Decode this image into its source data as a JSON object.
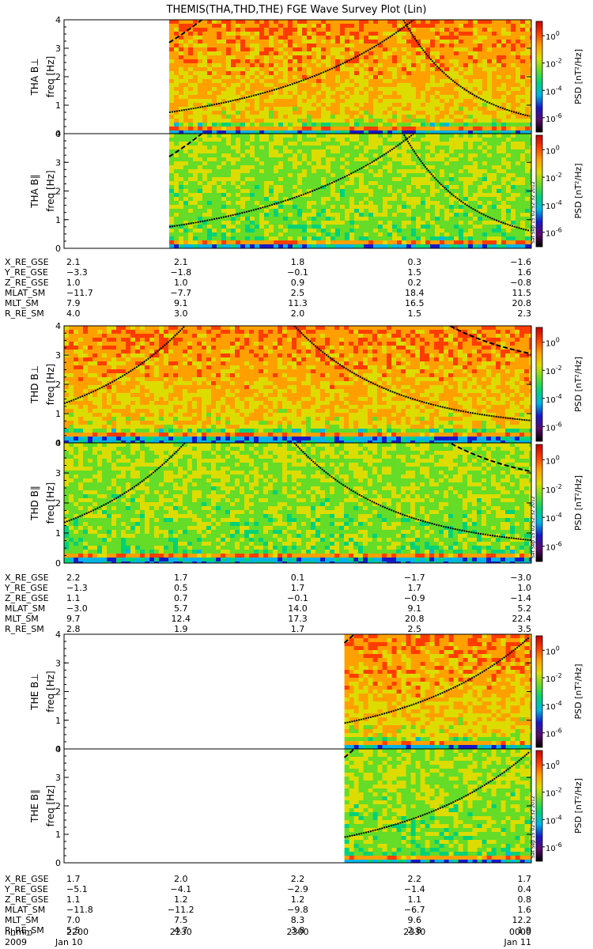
{
  "chart_data": {
    "type": "heatmap",
    "title": "THEMIS(THA,THD,THE) FGE Wave Survey Plot (Lin)",
    "ylabel": "freq [Hz]",
    "ylim": [
      0,
      4
    ],
    "yticks": [
      "0",
      "1",
      "2",
      "3",
      "4"
    ],
    "colorbar": {
      "label": "PSD [nT²/Hz]",
      "ticks": [
        {
          "base": "10",
          "exp": "0",
          "value": 1
        },
        {
          "base": "10",
          "exp": "-2",
          "value": 0.01
        },
        {
          "base": "10",
          "exp": "-4",
          "value": 0.0001
        },
        {
          "base": "10",
          "exp": "-6",
          "value": 1e-06
        }
      ],
      "colors": [
        "#000000",
        "#5a0a6e",
        "#1818c8",
        "#00b4e6",
        "#00d278",
        "#64dc28",
        "#dcdc00",
        "#ffa000",
        "#ff3c00",
        "#c80000"
      ]
    },
    "stamp": "Sat Sep 15 02:52:32 2012",
    "x_time": {
      "ticks": [
        "2200",
        "2230",
        "2300",
        "2330",
        "0000"
      ],
      "row_label": "hhmm",
      "year": "2009",
      "date_start": "Jan 10",
      "date_end": "Jan 11"
    },
    "panels": [
      {
        "label": "THA B⊥",
        "probe": "THA",
        "component": "perp",
        "data_start_frac": 0.225,
        "data_end_frac": 1.0
      },
      {
        "label": "THA B∥",
        "probe": "THA",
        "component": "par",
        "data_start_frac": 0.225,
        "data_end_frac": 1.0
      },
      {
        "label": "THD B⊥",
        "probe": "THD",
        "component": "perp",
        "data_start_frac": 0.0,
        "data_end_frac": 1.0
      },
      {
        "label": "THD B∥",
        "probe": "THD",
        "component": "par",
        "data_start_frac": 0.0,
        "data_end_frac": 1.0
      },
      {
        "label": "THE B⊥",
        "probe": "THE",
        "component": "perp",
        "data_start_frac": 0.6,
        "data_end_frac": 1.0
      },
      {
        "label": "THE B∥",
        "probe": "THE",
        "component": "par",
        "data_start_frac": 0.6,
        "data_end_frac": 1.0
      }
    ],
    "ephemeris": [
      {
        "probe": "THA",
        "rows": [
          {
            "name": "X_RE_GSE",
            "values": [
              "2.1",
              "2.1",
              "1.8",
              "0.3",
              "−1.6"
            ]
          },
          {
            "name": "Y_RE_GSE",
            "values": [
              "−3.3",
              "−1.8",
              "−0.1",
              "1.5",
              "1.6"
            ]
          },
          {
            "name": "Z_RE_GSE",
            "values": [
              "1.0",
              "1.0",
              "0.9",
              "0.2",
              "−0.8"
            ]
          },
          {
            "name": "MLAT_SM",
            "values": [
              "−11.7",
              "−7.7",
              "2.5",
              "18.4",
              "11.5"
            ]
          },
          {
            "name": "MLT_SM",
            "values": [
              "7.9",
              "9.1",
              "11.3",
              "16.5",
              "20.8"
            ]
          },
          {
            "name": "R_RE_SM",
            "values": [
              "4.0",
              "3.0",
              "2.0",
              "1.5",
              "2.3"
            ]
          }
        ]
      },
      {
        "probe": "THD",
        "rows": [
          {
            "name": "X_RE_GSE",
            "values": [
              "2.2",
              "1.7",
              "0.1",
              "−1.7",
              "−3.0"
            ]
          },
          {
            "name": "Y_RE_GSE",
            "values": [
              "−1.3",
              "0.5",
              "1.7",
              "1.7",
              "1.0"
            ]
          },
          {
            "name": "Z_RE_GSE",
            "values": [
              "1.1",
              "0.7",
              "−0.1",
              "−0.9",
              "−1.4"
            ]
          },
          {
            "name": "MLAT_SM",
            "values": [
              "−3.0",
              "5.7",
              "14.0",
              "9.1",
              "5.2"
            ]
          },
          {
            "name": "MLT_SM",
            "values": [
              "9.7",
              "12.4",
              "17.3",
              "20.8",
              "22.4"
            ]
          },
          {
            "name": "R_RE_SM",
            "values": [
              "2.8",
              "1.9",
              "1.7",
              "2.5",
              "3.5"
            ]
          }
        ]
      },
      {
        "probe": "THE",
        "rows": [
          {
            "name": "X_RE_GSE",
            "values": [
              "1.7",
              "2.0",
              "2.2",
              "2.2",
              "1.7"
            ]
          },
          {
            "name": "Y_RE_GSE",
            "values": [
              "−5.1",
              "−4.1",
              "−2.9",
              "−1.4",
              "0.4"
            ]
          },
          {
            "name": "Z_RE_GSE",
            "values": [
              "1.1",
              "1.2",
              "1.2",
              "1.1",
              "0.8"
            ]
          },
          {
            "name": "MLAT_SM",
            "values": [
              "−11.8",
              "−11.2",
              "−9.8",
              "−6.7",
              "1.6"
            ]
          },
          {
            "name": "MLT_SM",
            "values": [
              "7.0",
              "7.5",
              "8.3",
              "9.6",
              "12.2"
            ]
          },
          {
            "name": "R_RE_SM",
            "values": [
              "5.5",
              "4.7",
              "3.8",
              "2.8",
              "1.9"
            ]
          }
        ]
      }
    ]
  }
}
